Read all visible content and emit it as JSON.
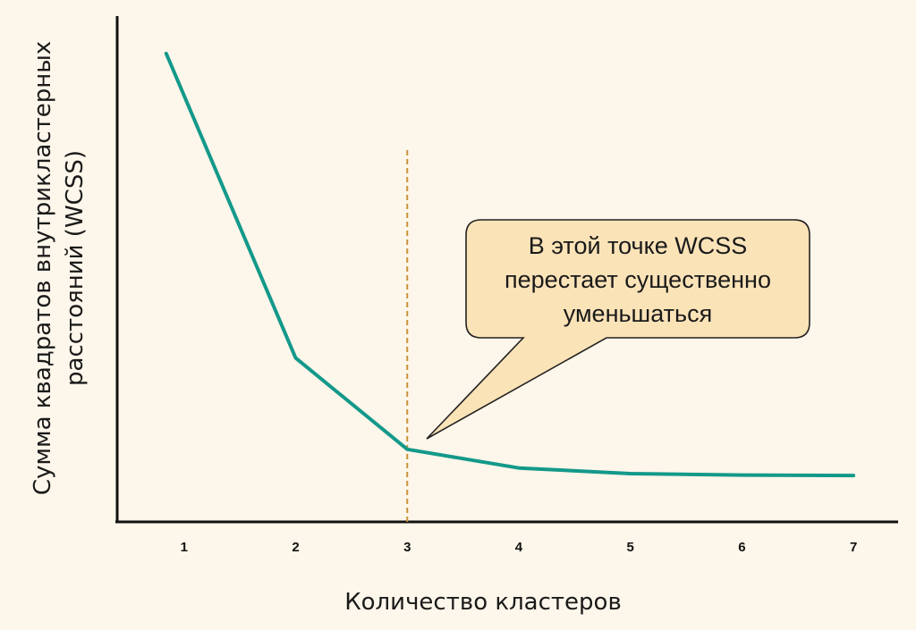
{
  "chart_data": {
    "type": "line",
    "x": [
      1,
      2,
      3,
      4,
      5,
      6,
      7
    ],
    "series": [
      {
        "values": [
          100,
          35,
          15.5,
          11.5,
          10.3,
          10,
          9.9
        ]
      }
    ],
    "xlabel": "Количество кластеров",
    "ylabel_lines": [
      "Сумма квадратов внутрикластерных",
      "расстояний (WCSS)"
    ],
    "xlim": [
      0.4,
      7.4
    ],
    "ylim": [
      0,
      108
    ],
    "y_ticks_shown": false,
    "grid": false,
    "elbow_marker_x": 3,
    "annotation": {
      "lines": [
        "В этой точке WCSS",
        "перестает существенно",
        "уменьшаться"
      ],
      "points_to_x": 3
    },
    "colors": {
      "line": "#13998a",
      "elbow_marker": "#c8923a",
      "callout_fill": "#fbe3b8",
      "background": "#fdf6ea"
    }
  }
}
